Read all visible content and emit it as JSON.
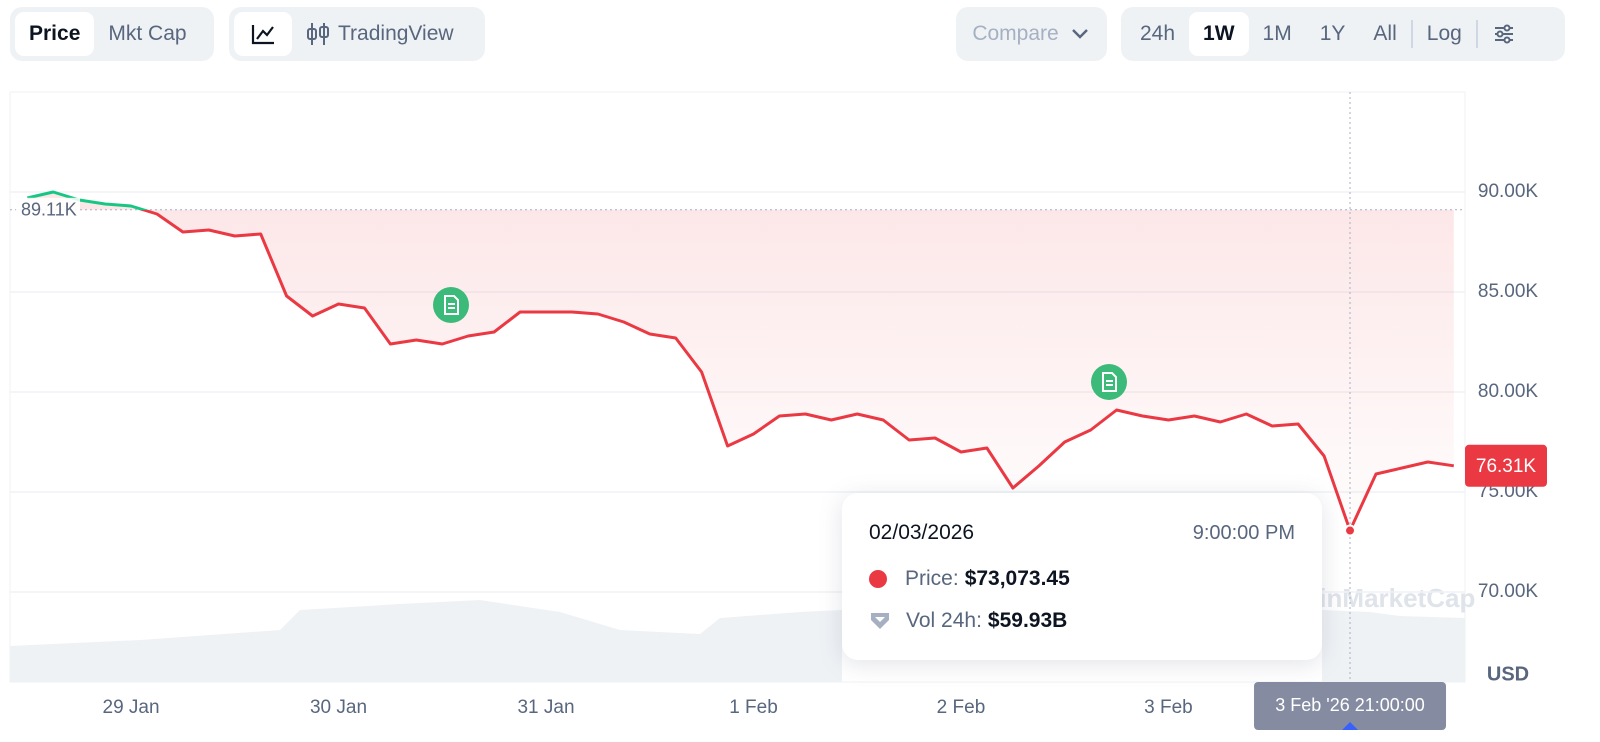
{
  "toolbar": {
    "view_tabs": [
      "Price",
      "Mkt Cap"
    ],
    "chart_mode": "TradingView",
    "compare": "Compare",
    "ranges": [
      "24h",
      "1W",
      "1M",
      "1Y",
      "All"
    ],
    "selected_range": "1W",
    "log": "Log"
  },
  "chart_data": {
    "type": "line",
    "x": [
      "2026-01-28T12:00",
      "2026-01-28T15:00",
      "2026-01-28T18:00",
      "2026-01-28T21:00",
      "2026-01-29T00:00",
      "2026-01-29T03:00",
      "2026-01-29T06:00",
      "2026-01-29T09:00",
      "2026-01-29T12:00",
      "2026-01-29T15:00",
      "2026-01-29T18:00",
      "2026-01-29T21:00",
      "2026-01-30T00:00",
      "2026-01-30T03:00",
      "2026-01-30T06:00",
      "2026-01-30T09:00",
      "2026-01-30T12:00",
      "2026-01-30T15:00",
      "2026-01-30T18:00",
      "2026-01-30T21:00",
      "2026-01-31T00:00",
      "2026-01-31T03:00",
      "2026-01-31T06:00",
      "2026-01-31T09:00",
      "2026-01-31T12:00",
      "2026-01-31T15:00",
      "2026-01-31T18:00",
      "2026-01-31T21:00",
      "2026-02-01T00:00",
      "2026-02-01T03:00",
      "2026-02-01T06:00",
      "2026-02-01T09:00",
      "2026-02-01T12:00",
      "2026-02-01T15:00",
      "2026-02-01T18:00",
      "2026-02-01T21:00",
      "2026-02-02T00:00",
      "2026-02-02T03:00",
      "2026-02-02T06:00",
      "2026-02-02T09:00",
      "2026-02-02T12:00",
      "2026-02-02T15:00",
      "2026-02-02T18:00",
      "2026-02-02T21:00",
      "2026-02-03T00:00",
      "2026-02-03T03:00",
      "2026-02-03T06:00",
      "2026-02-03T09:00",
      "2026-02-03T12:00",
      "2026-02-03T15:00",
      "2026-02-03T18:00",
      "2026-02-03T21:00",
      "2026-02-04T00:00",
      "2026-02-04T03:00",
      "2026-02-04T06:00",
      "2026-02-04T09:00"
    ],
    "values": [
      89700,
      90000,
      89600,
      89400,
      89300,
      88900,
      88000,
      88100,
      87800,
      87900,
      84800,
      83800,
      84400,
      84200,
      82400,
      82600,
      82400,
      82800,
      83000,
      84000,
      84000,
      84000,
      83900,
      83500,
      82900,
      82700,
      81000,
      77300,
      77900,
      78800,
      78900,
      78600,
      78900,
      78600,
      77600,
      77700,
      77000,
      77200,
      75200,
      76300,
      77500,
      78100,
      79100,
      78800,
      78600,
      78800,
      78500,
      78900,
      78300,
      78400,
      76800,
      73073.45,
      75900,
      76200,
      76500,
      76310
    ],
    "color": "#ea3943",
    "up_color": "#16c784",
    "xlim": [
      "2026-01-28T10:00",
      "2026-02-04T10:18"
    ],
    "xticks": [
      {
        "value": "2026-01-29T00:00",
        "label": "29 Jan"
      },
      {
        "value": "2026-01-30T00:00",
        "label": "30 Jan"
      },
      {
        "value": "2026-01-31T00:00",
        "label": "31 Jan"
      },
      {
        "value": "2026-02-01T00:00",
        "label": "1 Feb"
      },
      {
        "value": "2026-02-02T00:00",
        "label": "2 Feb"
      },
      {
        "value": "2026-02-03T00:00",
        "label": "3 Feb"
      }
    ],
    "ylim": [
      65500,
      95000
    ],
    "yticks": [
      {
        "value": 70000,
        "label": "70.00K"
      },
      {
        "value": 75000,
        "label": "75.00K"
      },
      {
        "value": 80000,
        "label": "80.00K"
      },
      {
        "value": 85000,
        "label": "85.00K"
      },
      {
        "value": 90000,
        "label": "90.00K"
      }
    ],
    "grid": true,
    "reference": {
      "value": 89110,
      "label": "89.11K"
    },
    "last_price": {
      "value": 76310,
      "label": "76.31K"
    },
    "hover_x": "2026-02-03T21:00"
  },
  "tooltip": {
    "date": "02/03/2026",
    "time": "9:00:00 PM",
    "price_label": "Price:",
    "price": "$73,073.45",
    "volume_label": "Vol 24h:",
    "volume": "$59.93B"
  },
  "crosshair_label": "3 Feb '26 21:00:00",
  "currency": "USD",
  "watermark": "CoinMarketCap"
}
